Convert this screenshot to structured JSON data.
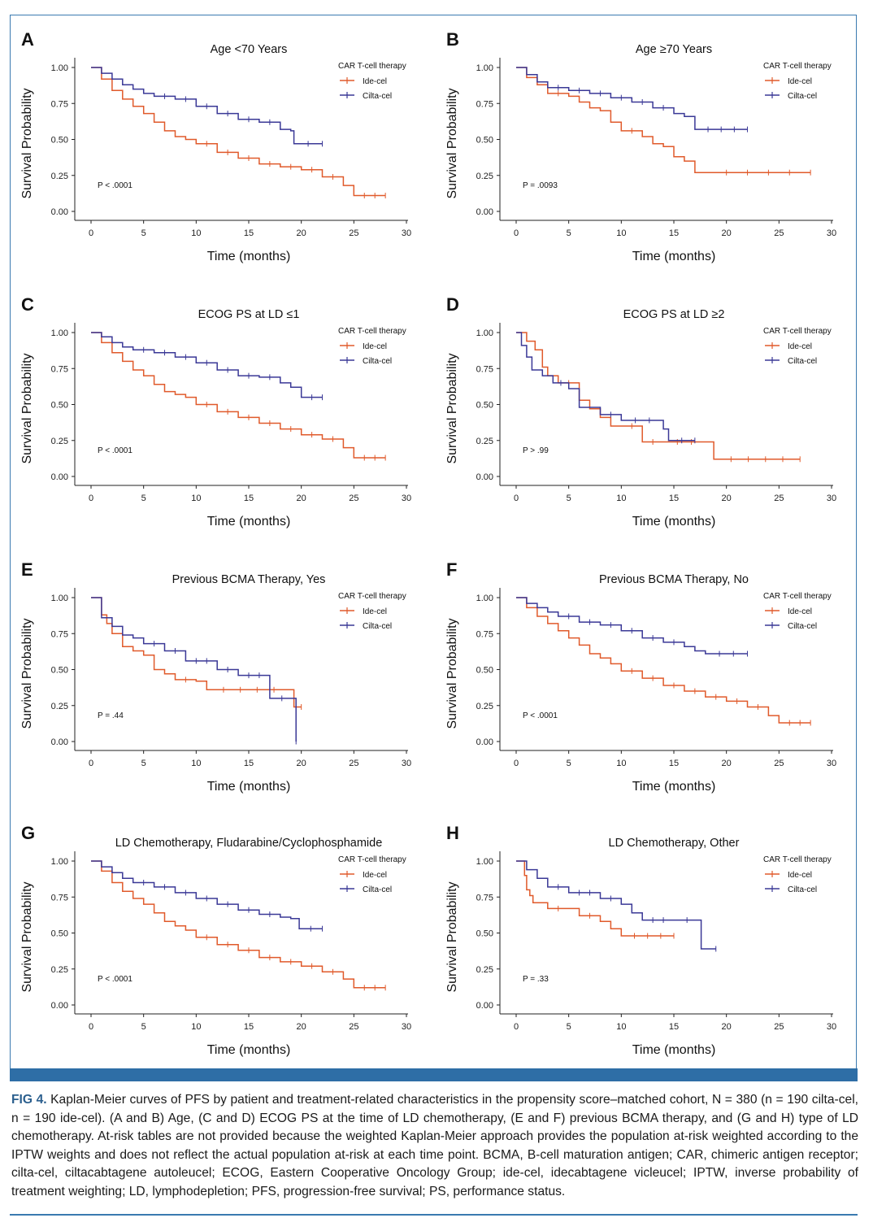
{
  "colors": {
    "ide_cel": "#e05a2b",
    "cilta_cel": "#3a3896",
    "frame": "#3a7ab0",
    "bar": "#2e6ea6",
    "caption_label": "#2b5f8e"
  },
  "caption": {
    "label": "FIG 4.",
    "text": "Kaplan-Meier curves of PFS by patient and treatment-related characteristics in the propensity score–matched cohort, N = 380 (n = 190 cilta-cel, n = 190 ide-cel). (A and B) Age, (C and D) ECOG PS at the time of LD chemotherapy, (E and F) previous BCMA therapy, and (G and H) type of LD chemotherapy. At-risk tables are not provided because the weighted Kaplan-Meier approach provides the population at-risk weighted according to the IPTW weights and does not reflect the actual population at-risk at each time point. BCMA, B-cell maturation antigen; CAR, chimeric antigen receptor; cilta-cel, ciltacabtagene autoleucel; ECOG, Eastern Cooperative Oncology Group; ide-cel, idecabtagene vicleucel; IPTW, inverse probability of treatment weighting; LD, lymphodepletion; PFS, progression-free survival; PS, performance status."
  },
  "chart_data": [
    {
      "type": "line",
      "panel": "A",
      "title": "Age <70 Years",
      "xlabel": "Time (months)",
      "ylabel": "Survival Probability",
      "xlim": [
        0,
        30
      ],
      "ylim": [
        0,
        1
      ],
      "xticks": [
        0,
        5,
        10,
        15,
        20,
        25,
        30
      ],
      "yticks": [
        "0.00",
        "0.25",
        "0.50",
        "0.75",
        "1.00"
      ],
      "legend_title": "CAR T-cell therapy",
      "p_value": "P < .0001",
      "series": [
        {
          "name": "Ide-cel",
          "color": "#e05a2b",
          "x": [
            0,
            1,
            2,
            3,
            4,
            5,
            6,
            7,
            8,
            9,
            10,
            12,
            14,
            16,
            18,
            20,
            22,
            24,
            25,
            28
          ],
          "y": [
            1.0,
            0.92,
            0.84,
            0.78,
            0.73,
            0.68,
            0.62,
            0.56,
            0.52,
            0.5,
            0.47,
            0.41,
            0.37,
            0.33,
            0.31,
            0.29,
            0.24,
            0.18,
            0.11,
            0.11
          ]
        },
        {
          "name": "Cilta-cel",
          "color": "#3a3896",
          "x": [
            0,
            1,
            2,
            3,
            4,
            5,
            6,
            8,
            10,
            12,
            14,
            16,
            18,
            19,
            19.3,
            22
          ],
          "y": [
            1.0,
            0.96,
            0.92,
            0.88,
            0.85,
            0.82,
            0.8,
            0.78,
            0.73,
            0.68,
            0.64,
            0.62,
            0.57,
            0.56,
            0.47,
            0.47
          ]
        }
      ]
    },
    {
      "type": "line",
      "panel": "B",
      "title": "Age ≥70 Years",
      "xlabel": "Time (months)",
      "ylabel": "Survival Probability",
      "xlim": [
        0,
        30
      ],
      "ylim": [
        0,
        1
      ],
      "xticks": [
        0,
        5,
        10,
        15,
        20,
        25,
        30
      ],
      "yticks": [
        "0.00",
        "0.25",
        "0.50",
        "0.75",
        "1.00"
      ],
      "legend_title": "CAR T-cell therapy",
      "p_value": "P = .0093",
      "series": [
        {
          "name": "Ide-cel",
          "color": "#e05a2b",
          "x": [
            0,
            1,
            2,
            3,
            5,
            6,
            7,
            8,
            9,
            10,
            12,
            13,
            14,
            15,
            16,
            17,
            18,
            28
          ],
          "y": [
            1.0,
            0.93,
            0.88,
            0.82,
            0.8,
            0.76,
            0.72,
            0.7,
            0.62,
            0.56,
            0.52,
            0.47,
            0.45,
            0.38,
            0.35,
            0.27,
            0.27,
            0.27
          ]
        },
        {
          "name": "Cilta-cel",
          "color": "#3a3896",
          "x": [
            0,
            1,
            2,
            3,
            5,
            7,
            9,
            11,
            13,
            15,
            16,
            17,
            22
          ],
          "y": [
            1.0,
            0.95,
            0.9,
            0.86,
            0.84,
            0.82,
            0.79,
            0.76,
            0.72,
            0.68,
            0.66,
            0.57,
            0.57
          ]
        }
      ]
    },
    {
      "type": "line",
      "panel": "C",
      "title": "ECOG PS at LD ≤1",
      "xlabel": "Time (months)",
      "ylabel": "Survival Probability",
      "xlim": [
        0,
        30
      ],
      "ylim": [
        0,
        1
      ],
      "xticks": [
        0,
        5,
        10,
        15,
        20,
        25,
        30
      ],
      "yticks": [
        "0.00",
        "0.25",
        "0.50",
        "0.75",
        "1.00"
      ],
      "legend_title": "CAR T-cell therapy",
      "p_value": "P < .0001",
      "series": [
        {
          "name": "Ide-cel",
          "color": "#e05a2b",
          "x": [
            0,
            1,
            2,
            3,
            4,
            5,
            6,
            7,
            8,
            9,
            10,
            12,
            14,
            16,
            18,
            20,
            22,
            24,
            25,
            28
          ],
          "y": [
            1.0,
            0.93,
            0.86,
            0.8,
            0.74,
            0.7,
            0.64,
            0.59,
            0.57,
            0.55,
            0.5,
            0.45,
            0.41,
            0.37,
            0.33,
            0.29,
            0.26,
            0.2,
            0.13,
            0.13
          ]
        },
        {
          "name": "Cilta-cel",
          "color": "#3a3896",
          "x": [
            0,
            1,
            2,
            3,
            4,
            6,
            8,
            10,
            12,
            14,
            16,
            18,
            19,
            20,
            22
          ],
          "y": [
            1.0,
            0.97,
            0.93,
            0.9,
            0.88,
            0.86,
            0.83,
            0.79,
            0.74,
            0.7,
            0.69,
            0.65,
            0.62,
            0.55,
            0.55
          ]
        }
      ]
    },
    {
      "type": "line",
      "panel": "D",
      "title": "ECOG PS at LD ≥2",
      "xlabel": "Time (months)",
      "ylabel": "Survival Probability",
      "xlim": [
        0,
        30
      ],
      "ylim": [
        0,
        1
      ],
      "xticks": [
        0,
        5,
        10,
        15,
        20,
        25,
        30
      ],
      "yticks": [
        "0.00",
        "0.25",
        "0.50",
        "0.75",
        "1.00"
      ],
      "legend_title": "CAR T-cell therapy",
      "p_value": "P > .99",
      "series": [
        {
          "name": "Ide-cel",
          "color": "#e05a2b",
          "x": [
            0,
            1,
            1.8,
            2.5,
            3,
            4,
            6,
            7,
            8,
            9,
            10,
            12,
            14,
            18,
            18.8,
            27
          ],
          "y": [
            1.0,
            0.94,
            0.88,
            0.76,
            0.7,
            0.65,
            0.53,
            0.47,
            0.41,
            0.35,
            0.35,
            0.24,
            0.24,
            0.24,
            0.12,
            0.12
          ]
        },
        {
          "name": "Cilta-cel",
          "color": "#3a3896",
          "x": [
            0,
            0.5,
            1,
            1.5,
            2.5,
            3.5,
            5,
            6,
            7,
            8,
            10,
            14,
            14.5,
            17
          ],
          "y": [
            1.0,
            0.91,
            0.83,
            0.74,
            0.7,
            0.65,
            0.61,
            0.48,
            0.48,
            0.43,
            0.39,
            0.33,
            0.25,
            0.25
          ]
        }
      ]
    },
    {
      "type": "line",
      "panel": "E",
      "title": "Previous BCMA Therapy, Yes",
      "xlabel": "Time (months)",
      "ylabel": "Survival Probability",
      "xlim": [
        0,
        30
      ],
      "ylim": [
        0,
        1
      ],
      "xticks": [
        0,
        5,
        10,
        15,
        20,
        25,
        30
      ],
      "yticks": [
        "0.00",
        "0.25",
        "0.50",
        "0.75",
        "1.00"
      ],
      "legend_title": "CAR T-cell therapy",
      "p_value": "P = .44",
      "series": [
        {
          "name": "Ide-cel",
          "color": "#e05a2b",
          "x": [
            0,
            1,
            1.5,
            2,
            3,
            4,
            5,
            6,
            7,
            8,
            10,
            11,
            19,
            19.3,
            20
          ],
          "y": [
            1.0,
            0.88,
            0.82,
            0.75,
            0.66,
            0.63,
            0.6,
            0.5,
            0.47,
            0.43,
            0.42,
            0.36,
            0.36,
            0.24,
            0.24
          ]
        },
        {
          "name": "Cilta-cel",
          "color": "#3a3896",
          "x": [
            0,
            1,
            2,
            3,
            4,
            5,
            7,
            9,
            12,
            14,
            17,
            19.3,
            19.5
          ],
          "y": [
            1.0,
            0.86,
            0.8,
            0.74,
            0.72,
            0.68,
            0.63,
            0.56,
            0.5,
            0.46,
            0.3,
            0.3,
            0.0
          ]
        }
      ]
    },
    {
      "type": "line",
      "panel": "F",
      "title": "Previous BCMA Therapy, No",
      "xlabel": "Time (months)",
      "ylabel": "Survival Probability",
      "xlim": [
        0,
        30
      ],
      "ylim": [
        0,
        1
      ],
      "xticks": [
        0,
        5,
        10,
        15,
        20,
        25,
        30
      ],
      "yticks": [
        "0.00",
        "0.25",
        "0.50",
        "0.75",
        "1.00"
      ],
      "legend_title": "CAR T-cell therapy",
      "p_value": "P < .0001",
      "series": [
        {
          "name": "Ide-cel",
          "color": "#e05a2b",
          "x": [
            0,
            1,
            2,
            3,
            4,
            5,
            6,
            7,
            8,
            9,
            10,
            12,
            14,
            16,
            18,
            20,
            22,
            24,
            25,
            28
          ],
          "y": [
            1.0,
            0.93,
            0.87,
            0.82,
            0.77,
            0.72,
            0.67,
            0.61,
            0.58,
            0.54,
            0.49,
            0.44,
            0.39,
            0.35,
            0.31,
            0.28,
            0.24,
            0.18,
            0.13,
            0.13
          ]
        },
        {
          "name": "Cilta-cel",
          "color": "#3a3896",
          "x": [
            0,
            1,
            2,
            3,
            4,
            6,
            8,
            10,
            12,
            14,
            16,
            17,
            18,
            22
          ],
          "y": [
            1.0,
            0.96,
            0.93,
            0.9,
            0.87,
            0.83,
            0.81,
            0.77,
            0.72,
            0.69,
            0.66,
            0.63,
            0.61,
            0.61
          ]
        }
      ]
    },
    {
      "type": "line",
      "panel": "G",
      "title": "LD Chemotherapy, Fludarabine/Cyclophosphamide",
      "xlabel": "Time (months)",
      "ylabel": "Survival Probability",
      "xlim": [
        0,
        30
      ],
      "ylim": [
        0,
        1
      ],
      "xticks": [
        0,
        5,
        10,
        15,
        20,
        25,
        30
      ],
      "yticks": [
        "0.00",
        "0.25",
        "0.50",
        "0.75",
        "1.00"
      ],
      "legend_title": "CAR T-cell therapy",
      "p_value": "P < .0001",
      "series": [
        {
          "name": "Ide-cel",
          "color": "#e05a2b",
          "x": [
            0,
            1,
            2,
            3,
            4,
            5,
            6,
            7,
            8,
            9,
            10,
            12,
            14,
            16,
            18,
            20,
            22,
            24,
            25,
            28
          ],
          "y": [
            1.0,
            0.93,
            0.85,
            0.79,
            0.74,
            0.7,
            0.64,
            0.58,
            0.55,
            0.52,
            0.47,
            0.42,
            0.38,
            0.33,
            0.3,
            0.27,
            0.23,
            0.18,
            0.12,
            0.12
          ]
        },
        {
          "name": "Cilta-cel",
          "color": "#3a3896",
          "x": [
            0,
            1,
            2,
            3,
            4,
            6,
            8,
            10,
            12,
            14,
            16,
            18,
            19,
            19.8,
            22
          ],
          "y": [
            1.0,
            0.96,
            0.92,
            0.88,
            0.85,
            0.82,
            0.78,
            0.74,
            0.7,
            0.66,
            0.63,
            0.61,
            0.6,
            0.53,
            0.53
          ]
        }
      ]
    },
    {
      "type": "line",
      "panel": "H",
      "title": "LD Chemotherapy, Other",
      "xlabel": "Time (months)",
      "ylabel": "Survival Probability",
      "xlim": [
        0,
        30
      ],
      "ylim": [
        0,
        1
      ],
      "xticks": [
        0,
        5,
        10,
        15,
        20,
        25,
        30
      ],
      "yticks": [
        "0.00",
        "0.25",
        "0.50",
        "0.75",
        "1.00"
      ],
      "legend_title": "CAR T-cell therapy",
      "p_value": "P = .33",
      "series": [
        {
          "name": "Ide-cel",
          "color": "#e05a2b",
          "x": [
            0,
            0.8,
            1,
            1.3,
            1.6,
            3,
            5,
            6,
            8,
            9,
            10,
            15
          ],
          "y": [
            1.0,
            0.9,
            0.8,
            0.76,
            0.71,
            0.67,
            0.67,
            0.62,
            0.58,
            0.53,
            0.48,
            0.48
          ]
        },
        {
          "name": "Cilta-cel",
          "color": "#3a3896",
          "x": [
            0,
            1,
            2,
            3,
            5,
            8,
            10,
            11,
            12,
            15,
            17.5,
            17.6,
            19
          ],
          "y": [
            1.0,
            0.94,
            0.88,
            0.82,
            0.78,
            0.74,
            0.7,
            0.64,
            0.59,
            0.59,
            0.59,
            0.39,
            0.39
          ]
        }
      ]
    }
  ]
}
